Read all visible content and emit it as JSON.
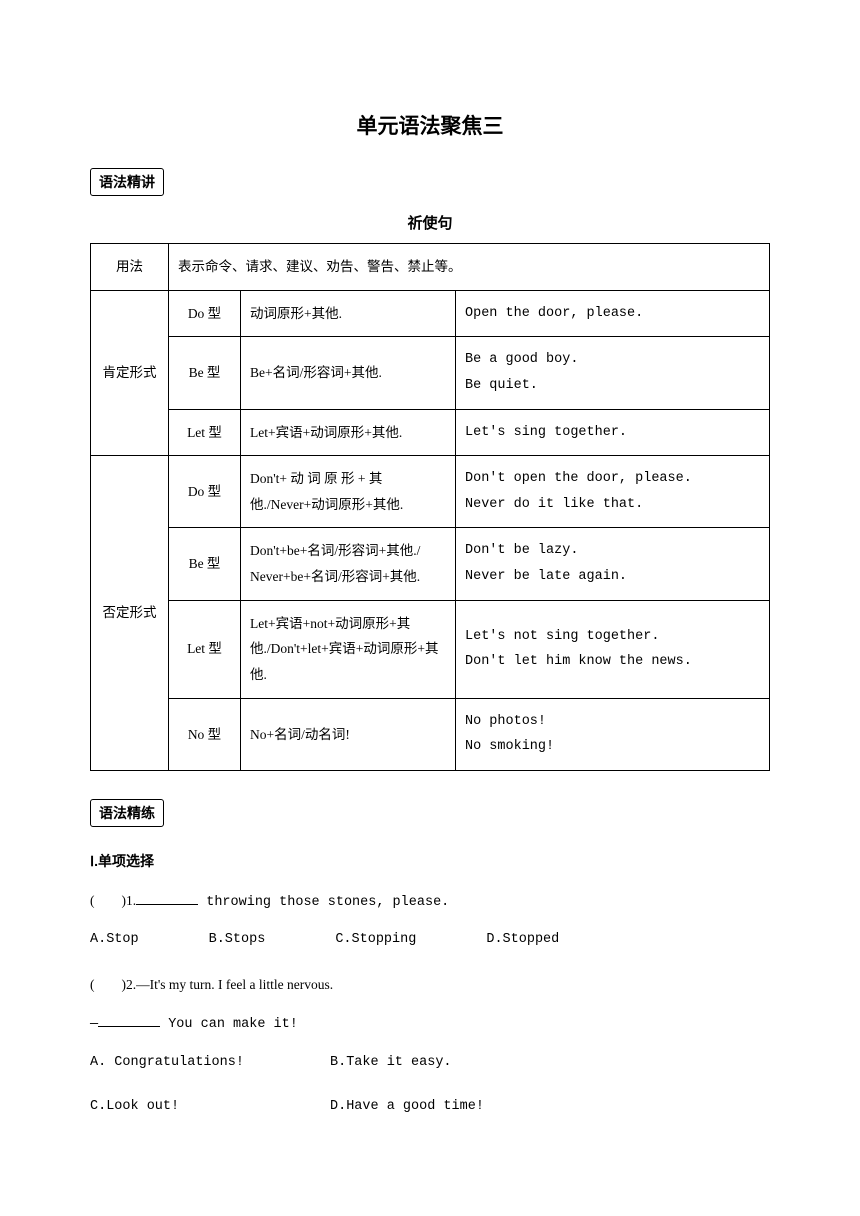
{
  "title": "单元语法聚焦三",
  "section1_label": "语法精讲",
  "subtitle": "祈使句",
  "table": {
    "usage_label": "用法",
    "usage_text": "表示命令、请求、建议、劝告、警告、禁止等。",
    "affirm_label": "肯定形式",
    "negative_label": "否定形式",
    "rows": [
      {
        "type": "Do 型",
        "formula": "动词原形+其他.",
        "example": "Open the door, please."
      },
      {
        "type": "Be 型",
        "formula": "Be+名词/形容词+其他.",
        "example": "Be a good boy.\nBe quiet."
      },
      {
        "type": "Let 型",
        "formula": "Let+宾语+动词原形+其他.",
        "example": "Let's sing together."
      },
      {
        "type": "Do 型",
        "formula": "Don't+ 动 词 原 形 + 其他./Never+动词原形+其他.",
        "example": "Don't open the door, please.\nNever do it like that."
      },
      {
        "type": "Be 型",
        "formula": "Don't+be+名词/形容词+其他./ Never+be+名词/形容词+其他.",
        "example": "Don't be lazy.\nNever be late again."
      },
      {
        "type": "Let 型",
        "formula": "Let+宾语+not+动词原形+其他./Don't+let+宾语+动词原形+其他.",
        "example": "Let's not sing together.\nDon't let him know the news."
      },
      {
        "type": "No 型",
        "formula": "No+名词/动名词!",
        "example": "No photos!\nNo smoking!"
      }
    ]
  },
  "section2_label": "语法精练",
  "section2_heading": "Ⅰ.单项选择",
  "q1": {
    "prefix": "(　　)1.",
    "suffix": " throwing those stones, please.",
    "options": {
      "a": "A.Stop",
      "b": "B.Stops",
      "c": "C.Stopping",
      "d": "D.Stopped"
    }
  },
  "q2": {
    "prefix": "(　　)2.—It's my turn. I feel a little nervous.",
    "line2_prefix": "—",
    "line2_suffix": " You can make it!",
    "options": {
      "a": "A. Congratulations!",
      "b": "B.Take it easy.",
      "c": "C.Look out!",
      "d": "D.Have a good time!"
    }
  }
}
